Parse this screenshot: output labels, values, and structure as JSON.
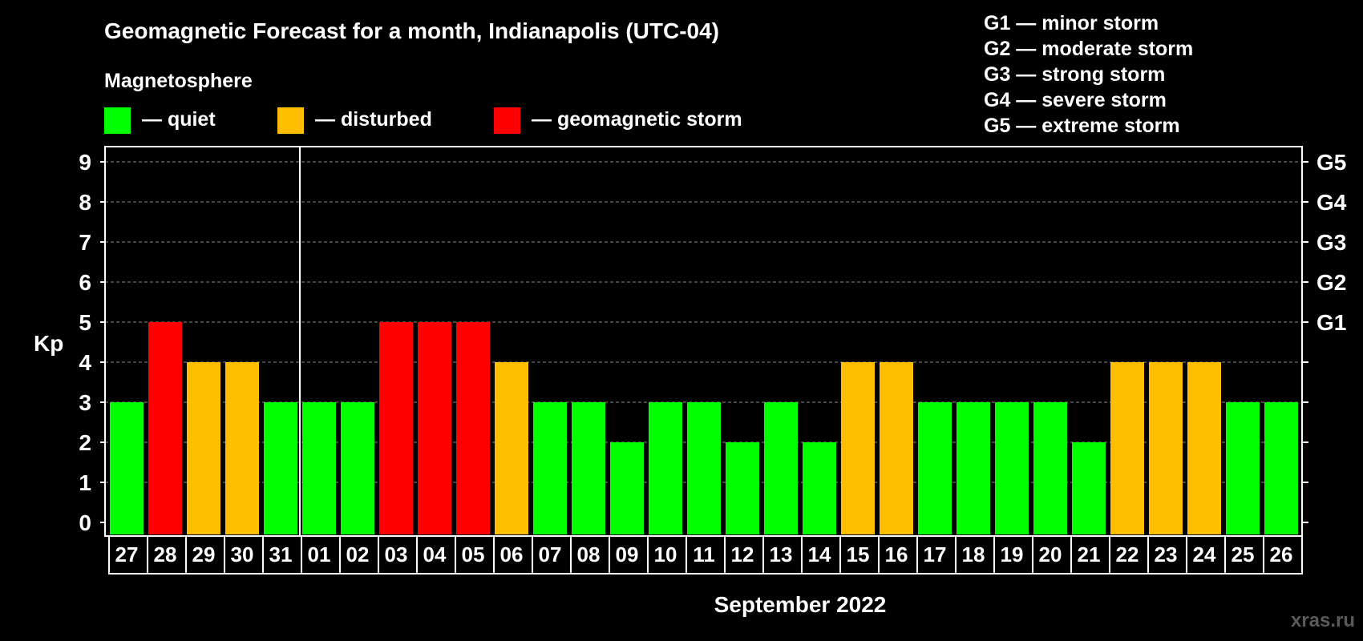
{
  "chart_data": {
    "type": "bar",
    "title": "Geomagnetic Forecast for a month, Indianapolis (UTC-04)",
    "legend_heading": "Magnetosphere",
    "legend": [
      {
        "label": "— quiet",
        "color": "#00ff00"
      },
      {
        "label": "— disturbed",
        "color": "#ffbf00"
      },
      {
        "label": "— geomagnetic storm",
        "color": "#ff0000"
      }
    ],
    "storm_scale": [
      "G1 — minor storm",
      "G2 — moderate storm",
      "G3 — strong storm",
      "G4 — severe storm",
      "G5 — extreme storm"
    ],
    "ylabel": "Kp",
    "xlabel": "September 2022",
    "ylim": [
      0,
      9
    ],
    "yticks": [
      0,
      1,
      2,
      3,
      4,
      5,
      6,
      7,
      8,
      9
    ],
    "right_ticks": [
      {
        "value": 5,
        "label": "G1"
      },
      {
        "value": 6,
        "label": "G2"
      },
      {
        "value": 7,
        "label": "G3"
      },
      {
        "value": 8,
        "label": "G4"
      },
      {
        "value": 9,
        "label": "G5"
      }
    ],
    "grid": true,
    "month_divider_after": "31",
    "categories": [
      "27",
      "28",
      "29",
      "30",
      "31",
      "01",
      "02",
      "03",
      "04",
      "05",
      "06",
      "07",
      "08",
      "09",
      "10",
      "11",
      "12",
      "13",
      "14",
      "15",
      "16",
      "17",
      "18",
      "19",
      "20",
      "21",
      "22",
      "23",
      "24",
      "25",
      "26"
    ],
    "values": [
      3,
      5,
      4,
      4,
      3,
      3,
      3,
      5,
      5,
      5,
      4,
      3,
      3,
      2,
      3,
      3,
      2,
      3,
      2,
      4,
      4,
      3,
      3,
      3,
      3,
      2,
      4,
      4,
      4,
      3,
      3
    ],
    "colors": {
      "quiet": "#00ff00",
      "disturbed": "#ffbf00",
      "storm": "#ff0000"
    }
  },
  "watermark": "xras.ru"
}
